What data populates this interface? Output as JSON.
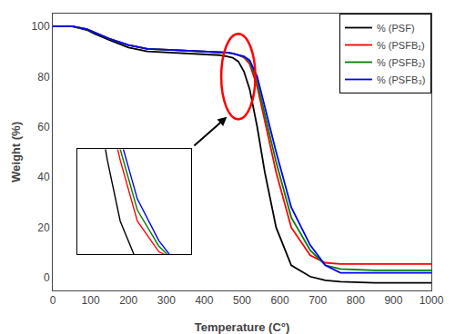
{
  "chart_data": {
    "type": "line",
    "xlabel": "Temperature (C°)",
    "ylabel": "Weight (%)",
    "xlim": [
      0,
      1000
    ],
    "ylim": [
      -5,
      105
    ],
    "xticks": [
      0,
      100,
      200,
      300,
      400,
      500,
      600,
      700,
      800,
      900,
      1000
    ],
    "yticks": [
      0,
      20,
      40,
      60,
      80,
      100
    ],
    "grid": false,
    "legend": "upper right",
    "x": [
      0,
      50,
      90,
      110,
      150,
      200,
      250,
      320,
      400,
      440,
      460,
      475,
      490,
      505,
      520,
      540,
      560,
      590,
      630,
      680,
      720,
      760,
      850,
      950,
      1000
    ],
    "series": [
      {
        "name": "% (PSF)",
        "color": "black",
        "values": [
          100,
          100,
          98.5,
          97,
          94.5,
          91.5,
          90,
          89.5,
          89,
          88.5,
          88,
          87.5,
          86,
          82,
          75,
          60,
          42,
          20,
          5,
          0.5,
          -1,
          -1.5,
          -2,
          -2,
          -2
        ]
      },
      {
        "name": "% (PSFB₁)",
        "color": "red",
        "values": [
          100,
          100,
          98.8,
          97.5,
          95,
          92.5,
          91,
          90.5,
          90,
          89.8,
          89.5,
          89.2,
          88.5,
          87.5,
          85,
          76,
          62,
          42,
          20,
          9,
          6,
          5.5,
          5.5,
          5.5,
          5.5
        ]
      },
      {
        "name": "% (PSFB₂)",
        "color": "green",
        "values": [
          100,
          100,
          98.8,
          97.5,
          95,
          92.5,
          91,
          90.5,
          90,
          89.8,
          89.5,
          89.2,
          88.5,
          87.8,
          86,
          78,
          65,
          46,
          24,
          11,
          5,
          3.5,
          3,
          3,
          3
        ]
      },
      {
        "name": "% (PSFB₃)",
        "color": "blue",
        "values": [
          100,
          100,
          98.8,
          97.5,
          95,
          92.5,
          91,
          90.5,
          90,
          89.8,
          89.5,
          89.2,
          88.5,
          88,
          86.5,
          80,
          68,
          50,
          28,
          13,
          5,
          2,
          2,
          2,
          2
        ]
      }
    ],
    "ellipse": {
      "x": 490,
      "y": 80,
      "width": 90,
      "height": 34,
      "color": "red"
    },
    "arrow": {
      "from": [
        370,
        52
      ],
      "to": [
        460,
        64
      ]
    },
    "inset": {
      "xlim": [
        490,
        755
      ],
      "ylim": [
        8,
        46
      ],
      "tick_labels": false
    }
  }
}
